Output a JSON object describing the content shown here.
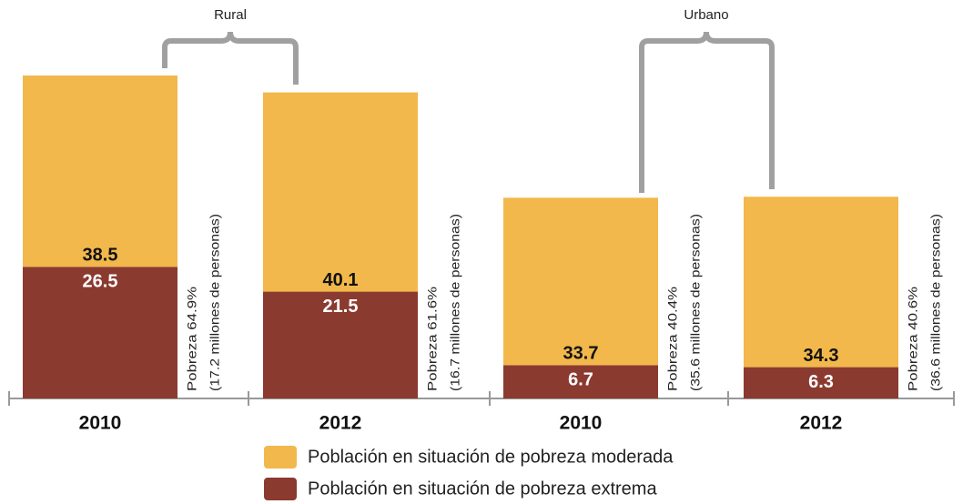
{
  "chart_data": {
    "type": "stacked_bar",
    "groups": [
      "Rural",
      "Urbano"
    ],
    "categories": [
      "2010",
      "2012",
      "2010",
      "2012"
    ],
    "series": [
      {
        "name": "Población en situación de pobreza moderada",
        "color": "#f2b84b",
        "values": [
          38.5,
          40.1,
          33.7,
          34.3
        ]
      },
      {
        "name": "Población en situación de pobreza extrema",
        "color": "#8b3a2f",
        "values": [
          26.5,
          21.5,
          6.7,
          6.3
        ]
      }
    ],
    "annotations": [
      {
        "line1": "Pobreza 64.9%",
        "line2": "(17.2 millones de personas)"
      },
      {
        "line1": "Pobreza 61.6%",
        "line2": "(16.7 millones de personas)"
      },
      {
        "line1": "Pobreza 40.4%",
        "line2": "(35.6 millones de personas)"
      },
      {
        "line1": "Pobreza 40.6%",
        "line2": "(36.6 millones de personas)"
      }
    ]
  }
}
